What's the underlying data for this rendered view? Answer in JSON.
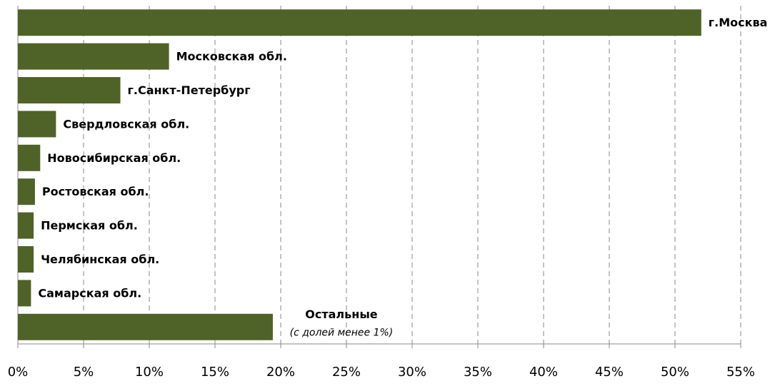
{
  "chart_data": {
    "type": "barh",
    "categories": [
      "г.Москва",
      "Московская обл.",
      "г.Санкт-Петербург",
      "Свердловская обл.",
      "Новосибирская обл.",
      "Ростовская обл.",
      "Пермская обл.",
      "Челябинская обл.",
      "Самарская обл.",
      "Остальные"
    ],
    "annotation": "(с долей менее 1%)",
    "values": [
      52.0,
      11.5,
      7.8,
      2.9,
      1.7,
      1.3,
      1.2,
      1.2,
      1.0,
      19.4
    ],
    "color": "#4f6228",
    "xlim": [
      0,
      55
    ],
    "xticks": [
      {
        "value": 0,
        "label": "0%"
      },
      {
        "value": 5,
        "label": "5%"
      },
      {
        "value": 10,
        "label": "10%"
      },
      {
        "value": 15,
        "label": "15%"
      },
      {
        "value": 20,
        "label": "20%"
      },
      {
        "value": 25,
        "label": "25%"
      },
      {
        "value": 30,
        "label": "30%"
      },
      {
        "value": 35,
        "label": "35%"
      },
      {
        "value": 40,
        "label": "40%"
      },
      {
        "value": 45,
        "label": "45%"
      },
      {
        "value": 50,
        "label": "50%"
      },
      {
        "value": 55,
        "label": "55%"
      }
    ],
    "grid": true
  }
}
